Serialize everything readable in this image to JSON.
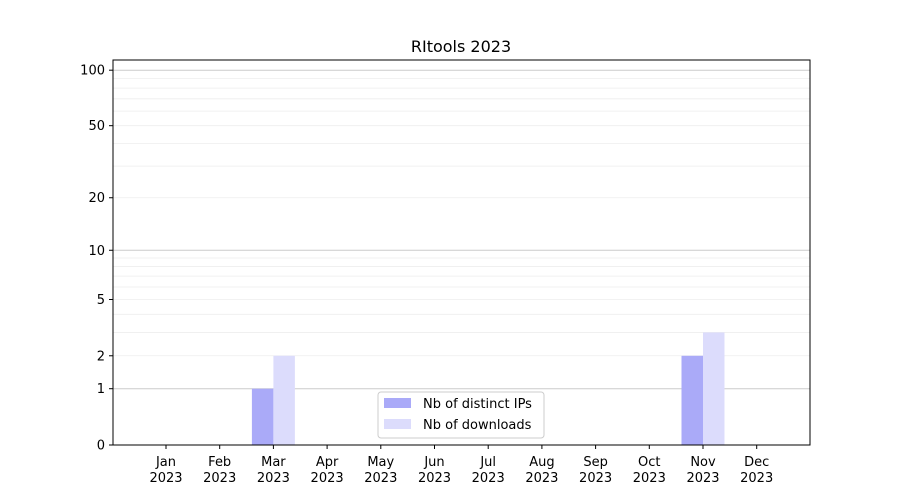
{
  "chart_data": {
    "type": "bar",
    "title": "RItools 2023",
    "xlabel": "",
    "ylabel": "",
    "yscale": "log(1+y)",
    "ylim": [
      0,
      113
    ],
    "grid": true,
    "legend_placement": "lower-center",
    "categories": [
      "Jan\n2023",
      "Feb\n2023",
      "Mar\n2023",
      "Apr\n2023",
      "May\n2023",
      "Jun\n2023",
      "Jul\n2023",
      "Aug\n2023",
      "Sep\n2023",
      "Oct\n2023",
      "Nov\n2023",
      "Dec\n2023"
    ],
    "yticks": [
      0,
      1,
      2,
      5,
      10,
      20,
      50,
      100
    ],
    "series": [
      {
        "name": "Nb of distinct IPs",
        "color": "#aaaaf8",
        "values": [
          0,
          0,
          1,
          0,
          0,
          0,
          0,
          0,
          0,
          0,
          2,
          0
        ]
      },
      {
        "name": "Nb of downloads",
        "color": "#dcdcfc",
        "values": [
          0,
          0,
          2,
          0,
          0,
          0,
          0,
          0,
          0,
          0,
          3,
          0
        ]
      }
    ]
  }
}
